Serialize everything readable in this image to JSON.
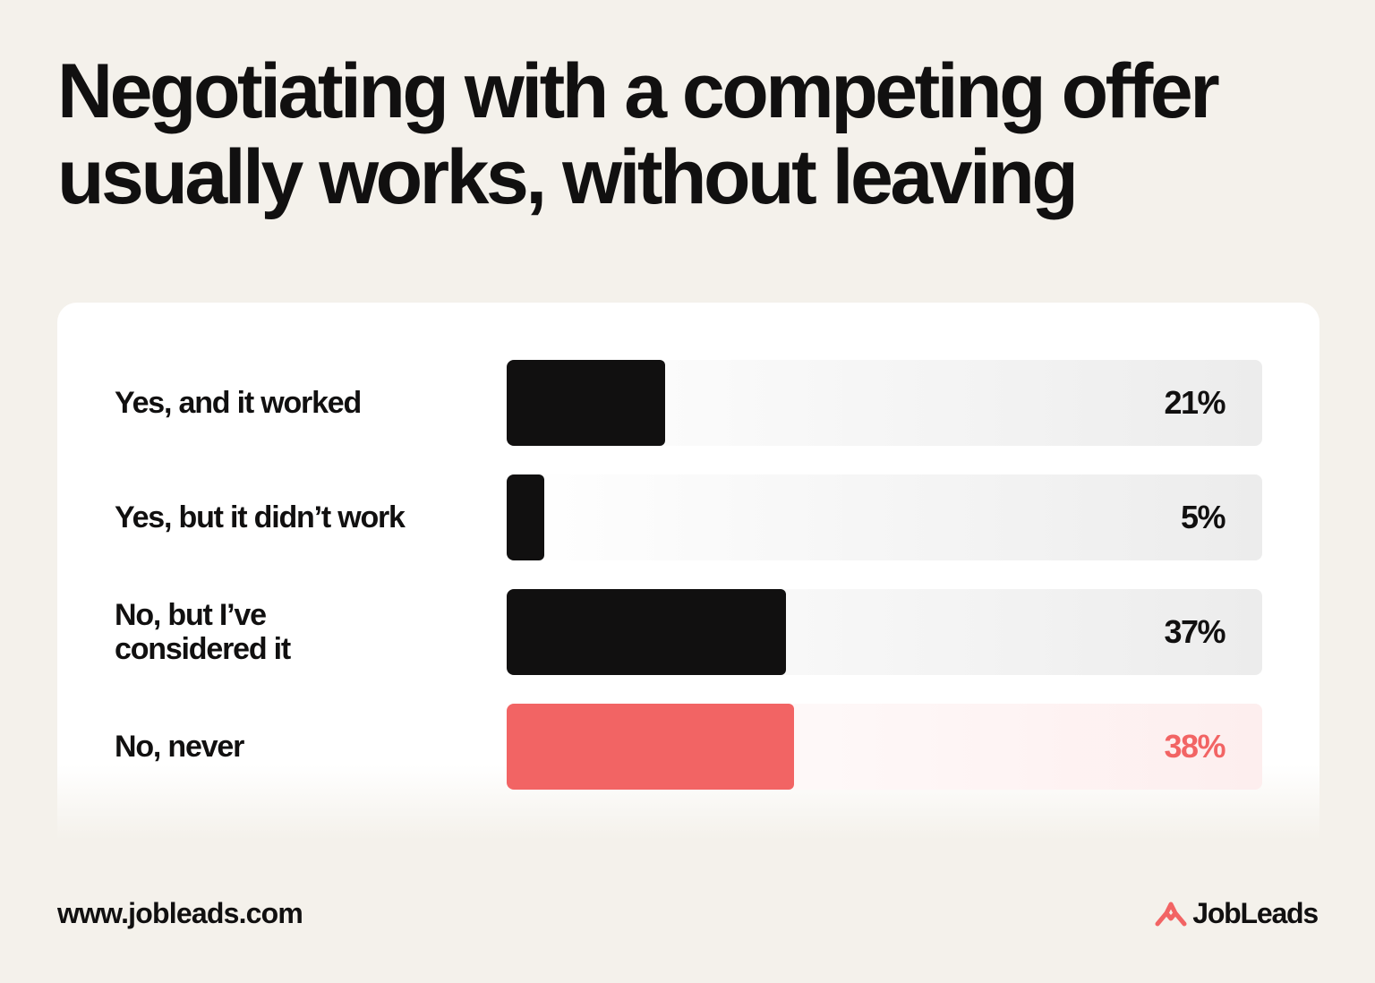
{
  "title_lines": [
    "Negotiating with a competing offer",
    "usually works, without leaving"
  ],
  "footer": {
    "url": "www.jobleads.com",
    "brand": "JobLeads",
    "brand_icon": "jobleads-logo-icon",
    "brand_color": "#f26464"
  },
  "colors": {
    "background": "#f4f1eb",
    "card": "#ffffff",
    "bar": "#111010",
    "accent": "#f26464"
  },
  "chart_data": {
    "type": "bar",
    "orientation": "horizontal",
    "title": "Negotiating with a competing offer usually works, without leaving",
    "categories": [
      [
        "Yes, and it worked"
      ],
      [
        "Yes, but it didn’t work"
      ],
      [
        "No, but I’ve",
        "considered it"
      ],
      [
        "No, never"
      ]
    ],
    "values": [
      21,
      5,
      37,
      38
    ],
    "value_labels": [
      "21%",
      "5%",
      "37%",
      "38%"
    ],
    "highlight_index": 3,
    "xlim": [
      0,
      100
    ],
    "grid": false,
    "legend": "none"
  }
}
